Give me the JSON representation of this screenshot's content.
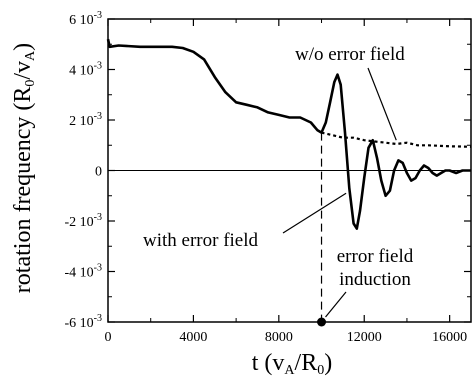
{
  "chart_data": {
    "type": "line",
    "xlabel": "t (v_A/R_0)",
    "xlabel_parts": {
      "main": "t (v",
      "sub1": "A",
      "mid": "/R",
      "sub2": "0",
      "end": ")"
    },
    "ylabel": "rotation frequency (R_0/v_A)",
    "ylabel_parts": {
      "main": "rotation frequency (R",
      "sub1": "0",
      "mid": "/v",
      "sub2": "A",
      "end": ")"
    },
    "xlim": [
      0,
      17000
    ],
    "ylim": [
      -0.006,
      0.006
    ],
    "x_ticks": [
      {
        "value": 0,
        "label": "0"
      },
      {
        "value": 4000,
        "label": "4000"
      },
      {
        "value": 8000,
        "label": "8000"
      },
      {
        "value": 12000,
        "label": "12000"
      },
      {
        "value": 16000,
        "label": "16000"
      }
    ],
    "y_ticks": [
      {
        "value": 0.006,
        "mant": "6 10",
        "exp": "-3"
      },
      {
        "value": 0.004,
        "mant": "4 10",
        "exp": "-3"
      },
      {
        "value": 0.002,
        "mant": "2 10",
        "exp": "-3"
      },
      {
        "value": 0,
        "mant": "0",
        "exp": ""
      },
      {
        "value": -0.002,
        "mant": "-2 10",
        "exp": "-3"
      },
      {
        "value": -0.004,
        "mant": "-4 10",
        "exp": "-3"
      },
      {
        "value": -0.006,
        "mant": "-6 10",
        "exp": "-3"
      }
    ],
    "series": [
      {
        "name": "with error field",
        "style": "solid",
        "points": [
          [
            0,
            0.0052
          ],
          [
            80,
            0.0049
          ],
          [
            500,
            0.00495
          ],
          [
            1500,
            0.0049
          ],
          [
            3000,
            0.0049
          ],
          [
            3500,
            0.00485
          ],
          [
            4000,
            0.0047
          ],
          [
            4500,
            0.0044
          ],
          [
            5000,
            0.0037
          ],
          [
            5500,
            0.0031
          ],
          [
            6000,
            0.0027
          ],
          [
            6500,
            0.0026
          ],
          [
            7000,
            0.0025
          ],
          [
            7500,
            0.0023
          ],
          [
            8000,
            0.0022
          ],
          [
            8500,
            0.0021
          ],
          [
            9000,
            0.0021
          ],
          [
            9500,
            0.0019
          ],
          [
            9800,
            0.0016
          ],
          [
            10000,
            0.0015
          ],
          [
            10200,
            0.0019
          ],
          [
            10400,
            0.0027
          ],
          [
            10600,
            0.0035
          ],
          [
            10750,
            0.0038
          ],
          [
            10900,
            0.0034
          ],
          [
            11100,
            0.0015
          ],
          [
            11300,
            -0.0007
          ],
          [
            11500,
            -0.0021
          ],
          [
            11650,
            -0.0023
          ],
          [
            11800,
            -0.0016
          ],
          [
            12000,
            -0.0003
          ],
          [
            12200,
            0.0009
          ],
          [
            12400,
            0.0012
          ],
          [
            12600,
            0.0005
          ],
          [
            12800,
            -0.0004
          ],
          [
            13000,
            -0.001
          ],
          [
            13200,
            -0.0008
          ],
          [
            13400,
            0.0
          ],
          [
            13600,
            0.0004
          ],
          [
            13800,
            0.0003
          ],
          [
            14000,
            -0.0001
          ],
          [
            14200,
            -0.0004
          ],
          [
            14400,
            -0.0003
          ],
          [
            14600,
            0.0
          ],
          [
            14800,
            0.0002
          ],
          [
            15000,
            0.0001
          ],
          [
            15200,
            -0.0001
          ],
          [
            15400,
            -0.0002
          ],
          [
            15600,
            -0.0001
          ],
          [
            15800,
            0.0
          ],
          [
            16000,
            0.0
          ],
          [
            16300,
            -0.0001
          ],
          [
            16600,
            0.0
          ],
          [
            17000,
            0.0
          ]
        ]
      },
      {
        "name": "w/o error field",
        "style": "dotted",
        "points": [
          [
            10000,
            0.0015
          ],
          [
            10500,
            0.0014
          ],
          [
            11000,
            0.0013
          ],
          [
            11500,
            0.0013
          ],
          [
            12000,
            0.0012
          ],
          [
            12500,
            0.00115
          ],
          [
            13000,
            0.0011
          ],
          [
            13500,
            0.00105
          ],
          [
            14000,
            0.0011
          ],
          [
            14500,
            0.001
          ],
          [
            15000,
            0.001
          ],
          [
            15500,
            0.00098
          ],
          [
            16000,
            0.00096
          ],
          [
            16500,
            0.00095
          ],
          [
            17000,
            0.00094
          ]
        ]
      }
    ],
    "annotations": {
      "with_label": "with error field",
      "without_label": "w/o error field",
      "induction_line1": "error field",
      "induction_line2": "induction",
      "induction_time": 10000
    },
    "grid": false,
    "legend": "none"
  }
}
